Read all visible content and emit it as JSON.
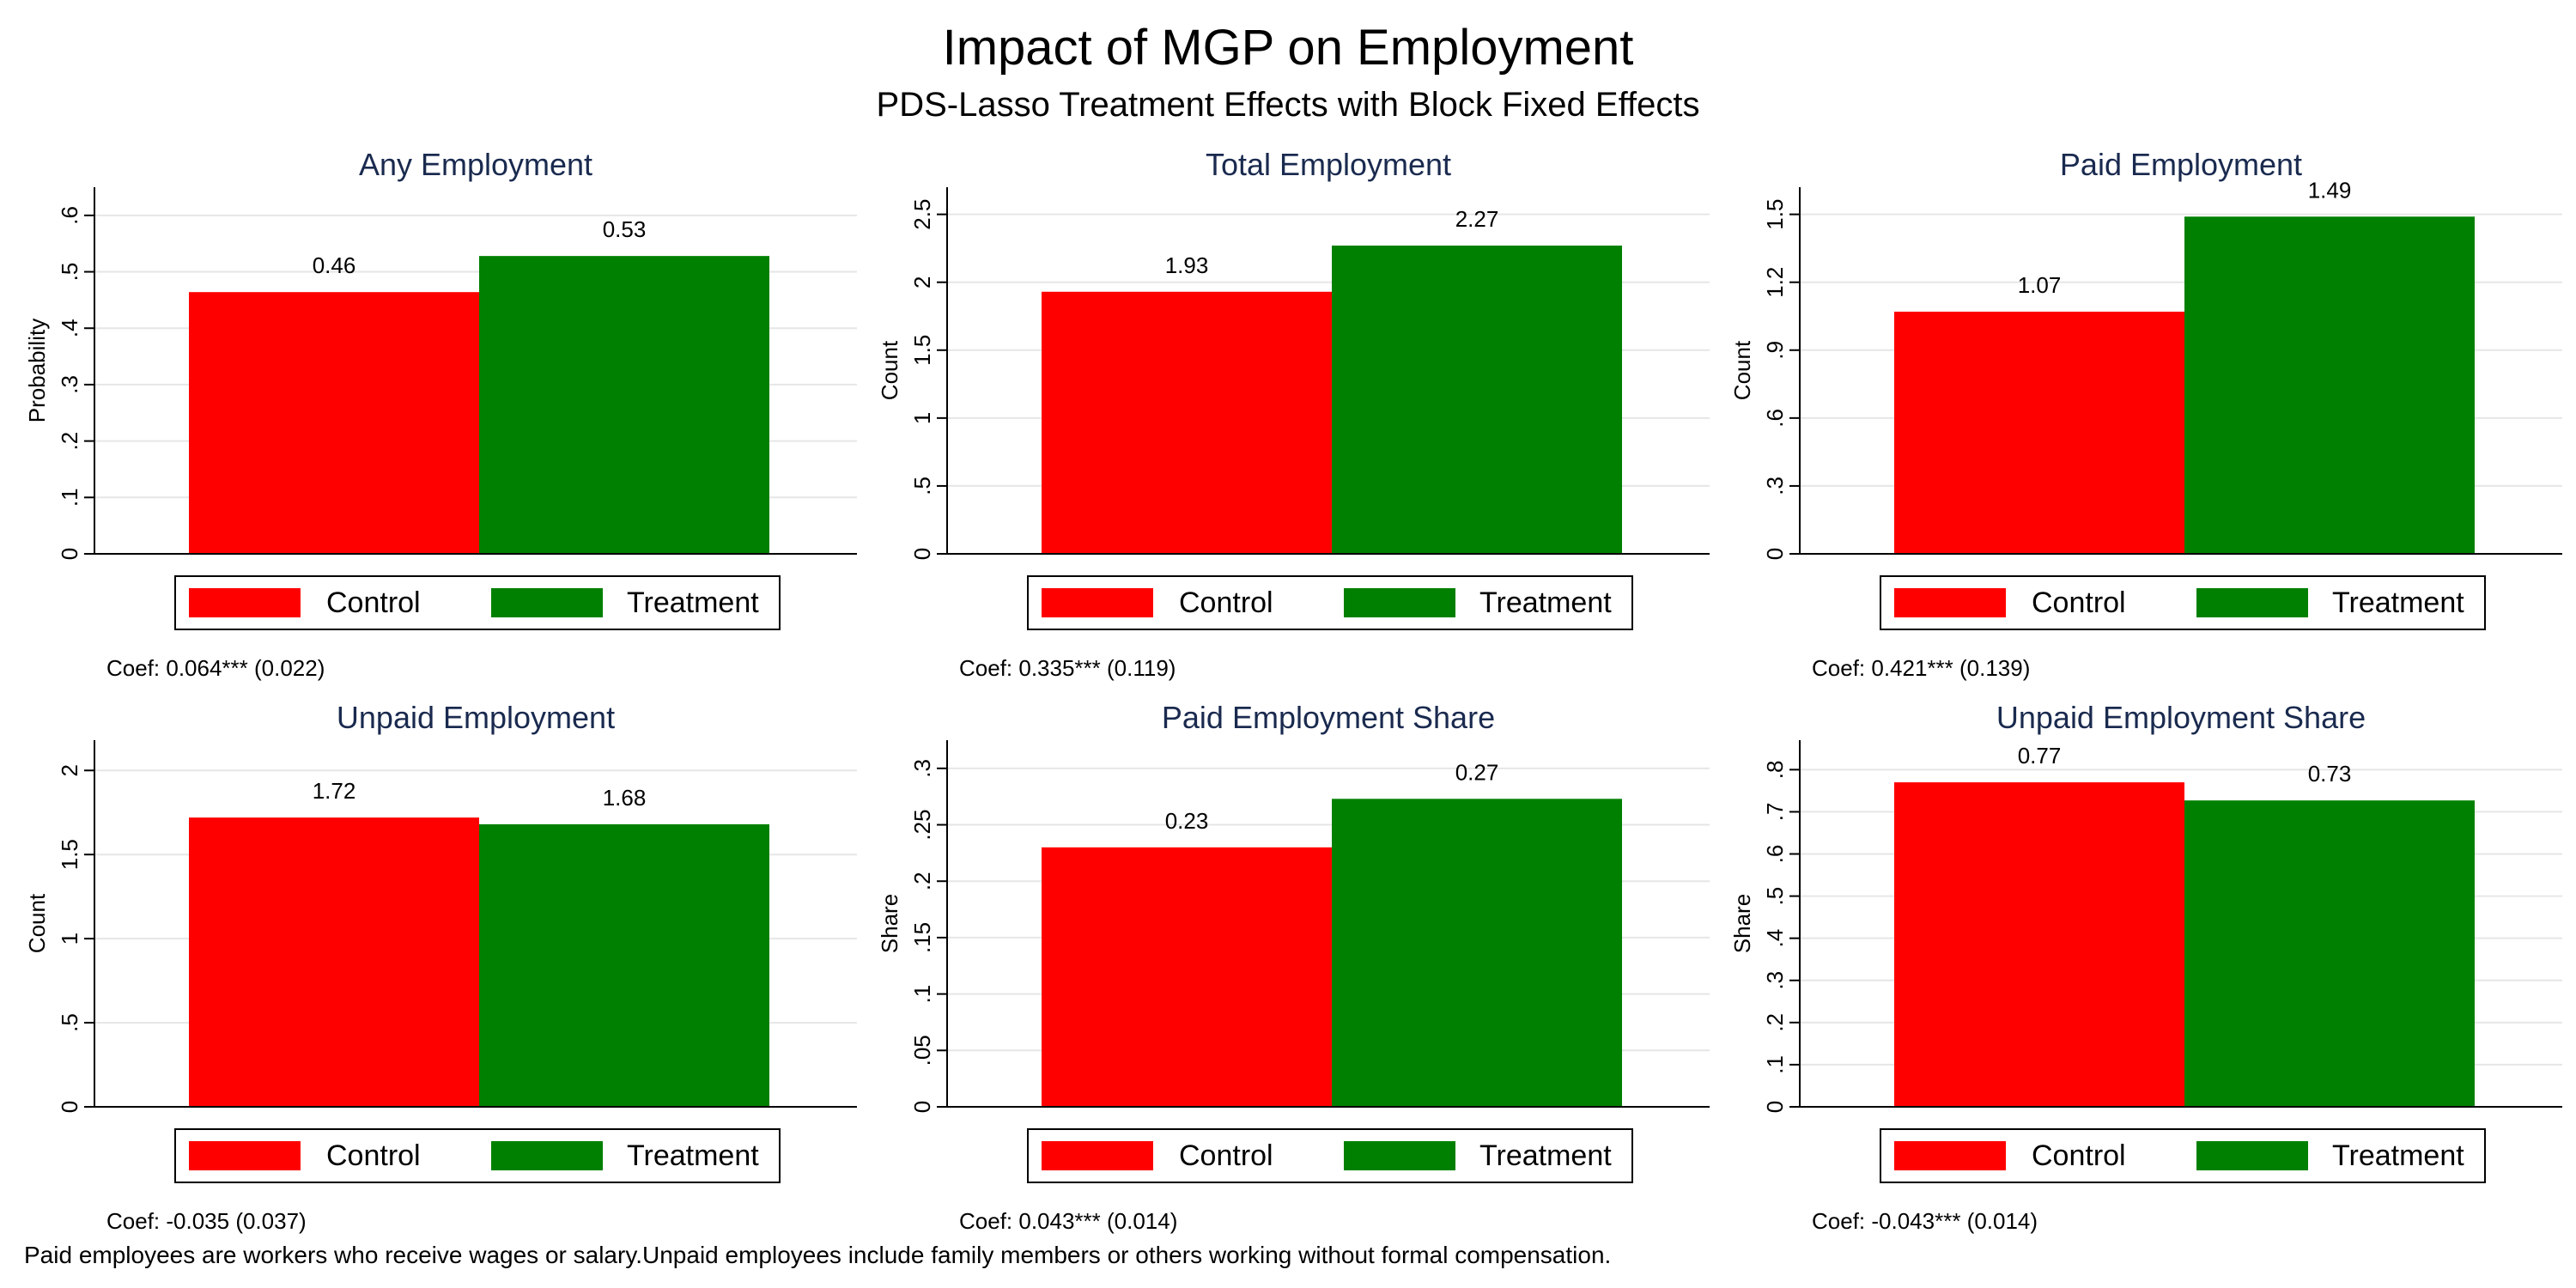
{
  "title": "Impact of MGP on Employment",
  "subtitle": "PDS-Lasso Treatment Effects with Block Fixed Effects",
  "footer_note": "Paid employees are workers who receive wages or salary.Unpaid employees include family members or others working without formal compensation.",
  "colors": {
    "control": "#ff0000",
    "treatment": "#008000",
    "panel_title": "#1a2a4f",
    "gridline": "#e6e6e6",
    "axis": "#000000"
  },
  "legend": {
    "control_label": "Control",
    "treatment_label": "Treatment",
    "placement": "bottom-center"
  },
  "chart_data": [
    {
      "type": "bar",
      "title": "Any Employment",
      "ylabel": "Probability",
      "categories": [
        "Control",
        "Treatment"
      ],
      "values": [
        0.464,
        0.528
      ],
      "data_labels": [
        "0.46",
        "0.53"
      ],
      "ylim": [
        0,
        0.65
      ],
      "yticks": [
        0,
        0.1,
        0.2,
        0.3,
        0.4,
        0.5,
        0.6
      ],
      "ytick_labels": [
        "0",
        ".1",
        ".2",
        ".3",
        ".4",
        ".5",
        ".6"
      ],
      "grid": true,
      "note": "Coef: 0.064*** (0.022)"
    },
    {
      "type": "bar",
      "title": "Total Employment",
      "ylabel": "Count",
      "categories": [
        "Control",
        "Treatment"
      ],
      "values": [
        1.93,
        2.27
      ],
      "data_labels": [
        "1.93",
        "2.27"
      ],
      "ylim": [
        0,
        2.7
      ],
      "yticks": [
        0,
        0.5,
        1,
        1.5,
        2,
        2.5
      ],
      "ytick_labels": [
        "0",
        ".5",
        "1",
        "1.5",
        "2",
        "2.5"
      ],
      "grid": true,
      "note": "Coef: 0.335*** (0.119)"
    },
    {
      "type": "bar",
      "title": "Paid Employment",
      "ylabel": "Count",
      "categories": [
        "Control",
        "Treatment"
      ],
      "values": [
        1.07,
        1.49
      ],
      "data_labels": [
        "1.07",
        "1.49"
      ],
      "ylim": [
        0,
        1.62
      ],
      "yticks": [
        0,
        0.3,
        0.6,
        0.9,
        1.2,
        1.5
      ],
      "ytick_labels": [
        "0",
        ".3",
        ".6",
        ".9",
        "1.2",
        "1.5"
      ],
      "grid": true,
      "note": "Coef: 0.421*** (0.139)"
    },
    {
      "type": "bar",
      "title": "Unpaid Employment",
      "ylabel": "Count",
      "categories": [
        "Control",
        "Treatment"
      ],
      "values": [
        1.72,
        1.68
      ],
      "data_labels": [
        "1.72",
        "1.68"
      ],
      "ylim": [
        0,
        2.18
      ],
      "yticks": [
        0,
        0.5,
        1,
        1.5,
        2
      ],
      "ytick_labels": [
        "0",
        ".5",
        "1",
        "1.5",
        "2"
      ],
      "grid": true,
      "note": "Coef: -0.035 (0.037)"
    },
    {
      "type": "bar",
      "title": "Paid Employment Share",
      "ylabel": "Share",
      "categories": [
        "Control",
        "Treatment"
      ],
      "values": [
        0.23,
        0.273
      ],
      "data_labels": [
        "0.23",
        "0.27"
      ],
      "ylim": [
        0,
        0.325
      ],
      "yticks": [
        0,
        0.05,
        0.1,
        0.15,
        0.2,
        0.25,
        0.3
      ],
      "ytick_labels": [
        "0",
        ".05",
        ".1",
        ".15",
        ".2",
        ".25",
        ".3"
      ],
      "grid": true,
      "note": "Coef: 0.043*** (0.014)"
    },
    {
      "type": "bar",
      "title": "Unpaid Employment Share",
      "ylabel": "Share",
      "categories": [
        "Control",
        "Treatment"
      ],
      "values": [
        0.77,
        0.727
      ],
      "data_labels": [
        "0.77",
        "0.73"
      ],
      "ylim": [
        0,
        0.87
      ],
      "yticks": [
        0,
        0.1,
        0.2,
        0.3,
        0.4,
        0.5,
        0.6,
        0.7,
        0.8
      ],
      "ytick_labels": [
        "0",
        ".1",
        ".2",
        ".3",
        ".4",
        ".5",
        ".6",
        ".7",
        ".8"
      ],
      "grid": true,
      "note": "Coef: -0.043*** (0.014)"
    }
  ]
}
